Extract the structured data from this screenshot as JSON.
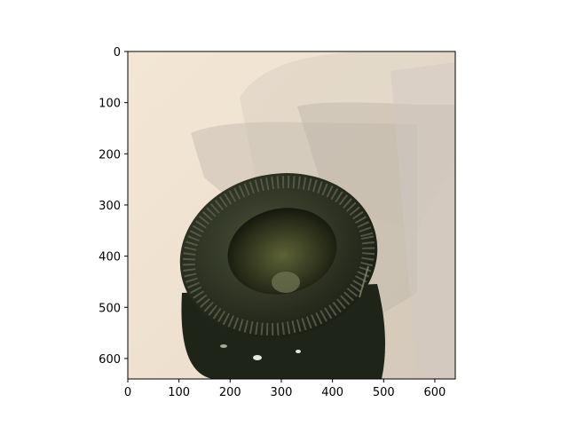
{
  "figure": {
    "image_description_free": true,
    "x_axis": {
      "ticks": [
        "0",
        "100",
        "200",
        "300",
        "400",
        "500",
        "600"
      ],
      "range": [
        0,
        640
      ]
    },
    "y_axis": {
      "ticks": [
        "0",
        "100",
        "200",
        "300",
        "400",
        "500",
        "600"
      ],
      "range": [
        0,
        640
      ],
      "inverted": true
    },
    "colors": {
      "background_wall": "#f1e4d2",
      "shadow": "#cfc5b7",
      "bottle_dark": "#1f2418",
      "bottle_mid": "#3b4230",
      "bottle_highlight": "#8c927c"
    }
  }
}
